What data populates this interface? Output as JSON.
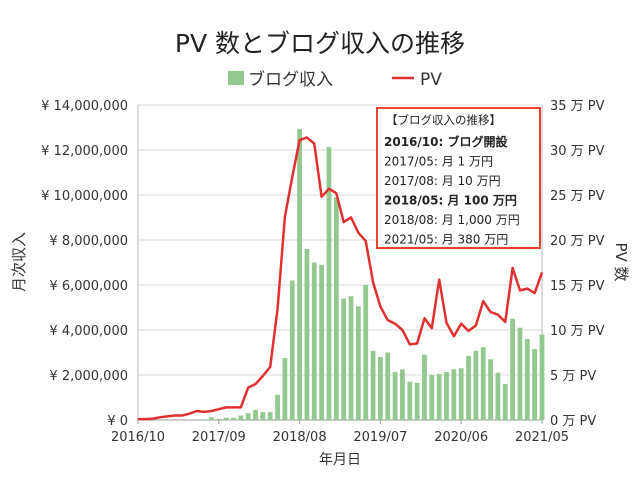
{
  "chart_data": {
    "type": "bar+line",
    "title": "PV 数とブログ収入の推移",
    "xlabel": "年月日",
    "ylabel": "月次収入",
    "y2label": "PV 数",
    "legend": {
      "placement": "top",
      "entries": [
        "ブログ収入",
        "PV"
      ]
    },
    "grid": true,
    "x_tick_labels": [
      "2016/10",
      "2017/09",
      "2018/08",
      "2019/07",
      "2020/06",
      "2021/05"
    ],
    "y_ticks": [
      "¥ 0",
      "¥ 2,000,000",
      "¥ 4,000,000",
      "¥ 6,000,000",
      "¥ 8,000,000",
      "¥ 10,000,000",
      "¥ 12,000,000",
      "¥ 14,000,000"
    ],
    "y2_ticks": [
      "0 万 PV",
      "5 万 PV",
      "10 万 PV",
      "15 万 PV",
      "20 万 PV",
      "25 万 PV",
      "30 万 PV",
      "35 万 PV"
    ],
    "ylim": [
      0,
      14000000
    ],
    "y2lim": [
      0,
      35
    ],
    "x_start": "2016/10",
    "x_end": "2021/05",
    "series": [
      {
        "name": "ブログ収入",
        "type": "bar",
        "axis": "left",
        "color": "#93c98f",
        "values": [
          0,
          0,
          0,
          0,
          0,
          0,
          0,
          10000,
          20000,
          30000,
          120000,
          50000,
          100000,
          100000,
          200000,
          300000,
          450000,
          350000,
          350000,
          1120000,
          2750000,
          6200000,
          12930000,
          7600000,
          7000000,
          6900000,
          12130000,
          9900000,
          5400000,
          5500000,
          5050000,
          6000000,
          3070000,
          2800000,
          3000000,
          2130000,
          2250000,
          1700000,
          1650000,
          2900000,
          2000000,
          2040000,
          2130000,
          2250000,
          2300000,
          2850000,
          3070000,
          3240000,
          2700000,
          2100000,
          1600000,
          4500000,
          4100000,
          3600000,
          3150000,
          3800000
        ]
      },
      {
        "name": "PV",
        "type": "line",
        "axis": "right",
        "color": "#e03030",
        "values": [
          0.1,
          0.1,
          0.15,
          0.3,
          0.4,
          0.5,
          0.5,
          0.7,
          1.0,
          0.9,
          1.0,
          1.2,
          1.4,
          1.4,
          1.4,
          3.6,
          4.0,
          4.9,
          5.9,
          12.4,
          22.6,
          27.0,
          31.1,
          31.4,
          30.7,
          24.8,
          25.7,
          25.2,
          22.0,
          22.5,
          20.8,
          19.9,
          15.3,
          12.6,
          11.1,
          10.7,
          10.0,
          8.4,
          8.5,
          11.3,
          10.2,
          15.6,
          10.8,
          9.3,
          10.7,
          9.9,
          10.5,
          13.2,
          12.0,
          11.7,
          10.9,
          16.9,
          14.4,
          14.6,
          14.1,
          16.4
        ]
      }
    ],
    "annotation": {
      "title": "【ブログ収入の推移】",
      "lines": [
        {
          "text": "2016/10: ブログ開設",
          "bold": true
        },
        {
          "text": "2017/05: 月 1 万円",
          "bold": false
        },
        {
          "text": "2017/08: 月 10 万円",
          "bold": false
        },
        {
          "text": "2018/05: 月 100 万円",
          "bold": true
        },
        {
          "text": "2018/08: 月 1,000 万円",
          "bold": false
        },
        {
          "text": "2021/05: 月 380 万円",
          "bold": false
        }
      ],
      "border_color": "#e8452c"
    }
  }
}
